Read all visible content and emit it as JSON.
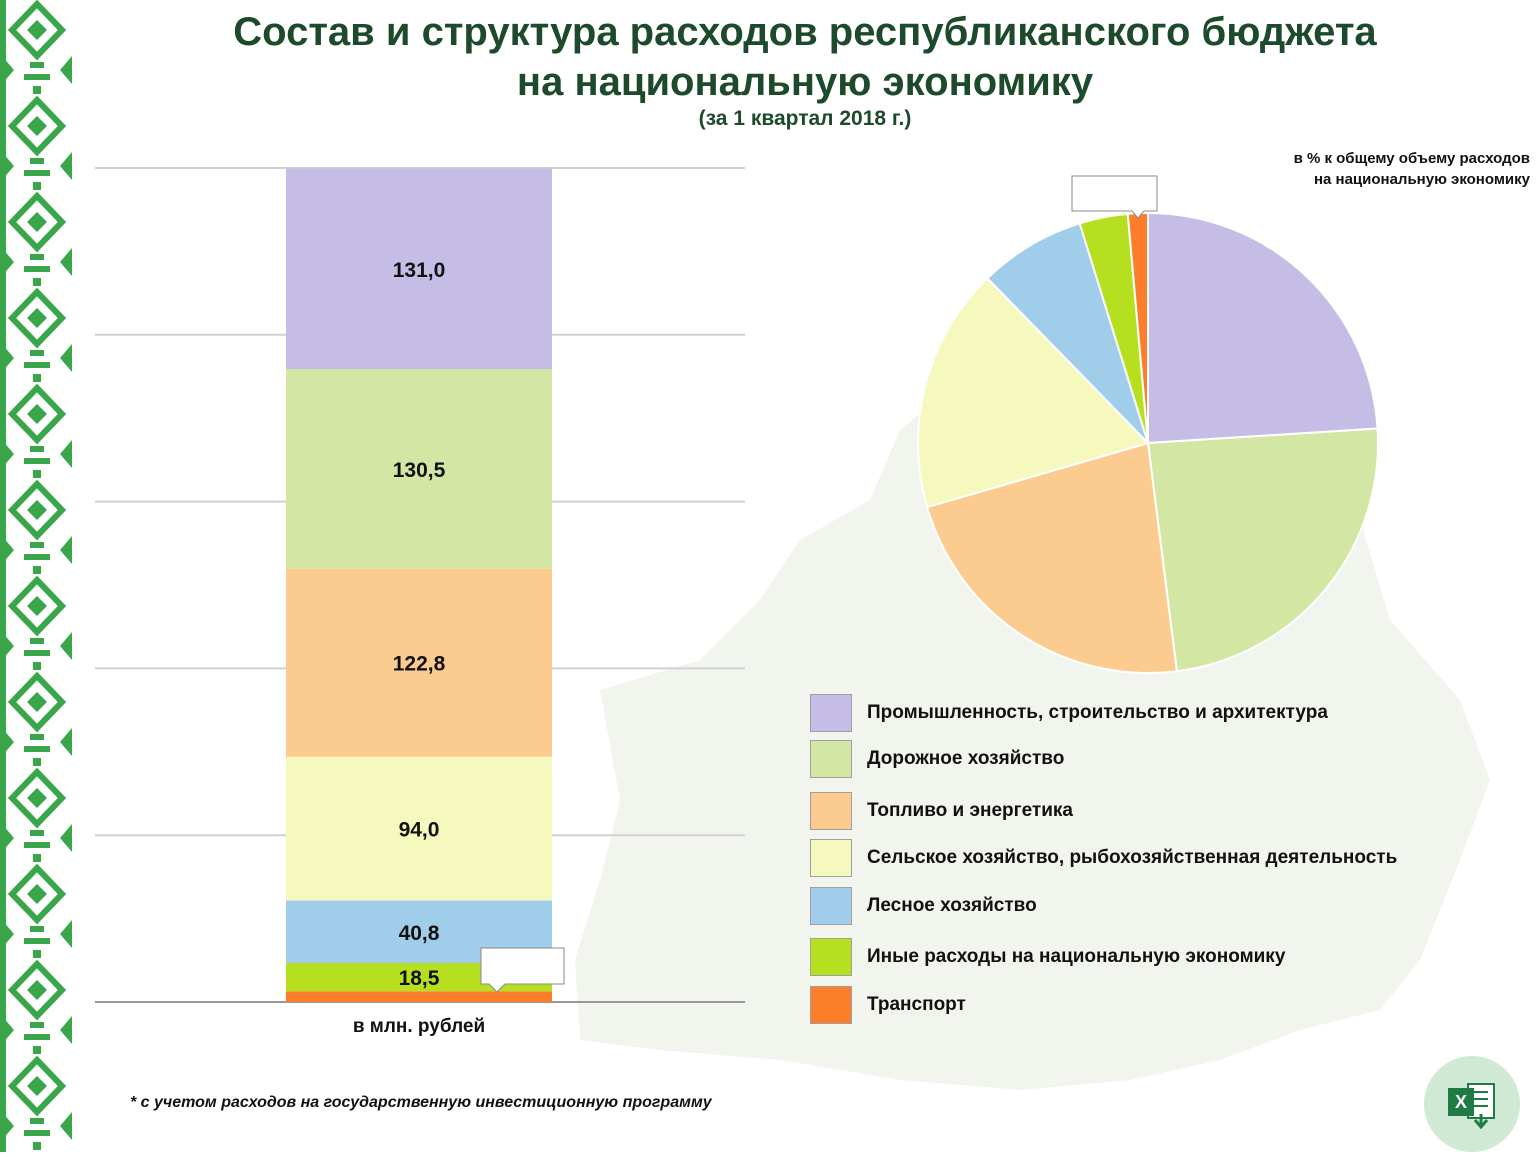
{
  "title_line1": "Состав и структура расходов республиканского бюджета",
  "title_line2": "на национальную экономику",
  "subtitle": "(за 1 квартал 2018 г.)",
  "pie_note_line1": "в % к общему объему расходов",
  "pie_note_line2": "на национальную экономику",
  "bar_category_label": "в млн. рублей",
  "footnote": "* с учетом расходов на государственную инвестиционную программу",
  "icons": {
    "export": "excel-download-icon",
    "decoration": "belarusian-ornament"
  },
  "chart_data": [
    {
      "type": "bar",
      "stacked": true,
      "categories": [
        "в млн. рублей"
      ],
      "series": [
        {
          "name": "Промышленность, строительство и архитектура",
          "values": [
            131.0
          ],
          "label": "131,0",
          "color": "#c6bde6"
        },
        {
          "name": "Дорожное хозяйство",
          "values": [
            130.5
          ],
          "label": "130,5",
          "color": "#d3e6a3"
        },
        {
          "name": "Топливо и энергетика",
          "values": [
            122.8
          ],
          "label": "122,8",
          "color": "#fbcb8f"
        },
        {
          "name": "Сельское хозяйство, рыбохозяйственная деятельность",
          "values": [
            94.0
          ],
          "label": "94,0",
          "color": "#f6f9bd"
        },
        {
          "name": "Лесное хозяйство",
          "values": [
            40.8
          ],
          "label": "40,8",
          "color": "#a0cdea"
        },
        {
          "name": "Иные расходы на национальную экономику",
          "values": [
            18.5
          ],
          "label": "18,5",
          "color": "#b6e01f"
        },
        {
          "name": "Транспорт",
          "values": [
            7.0
          ],
          "label": "",
          "color": "#fc7e2a"
        }
      ],
      "ylim": [
        0,
        545
      ],
      "grid": true
    },
    {
      "type": "pie",
      "title": "в % к общему объему расходов на национальную экономику",
      "start_angle_deg": 0,
      "direction": "clockwise",
      "slices": [
        {
          "label": "Промышленность, строительство и архитектура",
          "value": 24.0,
          "color": "#c6bde6"
        },
        {
          "label": "Дорожное хозяйство",
          "value": 24.0,
          "color": "#d3e6a3"
        },
        {
          "label": "Топливо и энергетика",
          "value": 22.5,
          "color": "#fbcb8f"
        },
        {
          "label": "Сельское хозяйство, рыбохозяйственная деятельность",
          "value": 17.2,
          "color": "#f6f9bd"
        },
        {
          "label": "Лесное хозяйство",
          "value": 7.5,
          "color": "#a0cdea"
        },
        {
          "label": "Иные расходы на национальную экономику",
          "value": 3.4,
          "color": "#b6e01f"
        },
        {
          "label": "Транспорт",
          "value": 1.4,
          "color": "#fc7e2a"
        }
      ],
      "legend_position": "bottom"
    }
  ]
}
